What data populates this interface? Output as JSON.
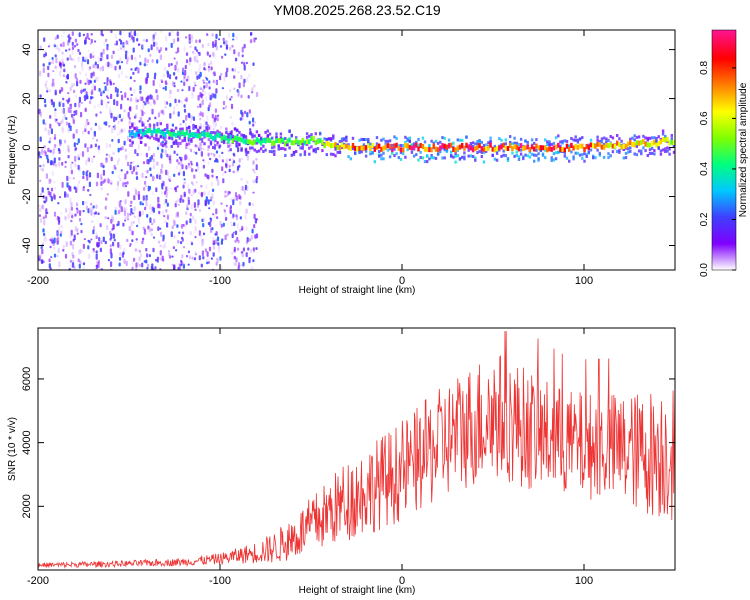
{
  "title": "YM08.2025.268.23.52.C19",
  "colors": {
    "snr_line": "#ee3333",
    "axis": "#000000",
    "colormap": [
      "#ffffff",
      "#7f00ff",
      "#3f3fff",
      "#00c8ff",
      "#00ff7f",
      "#7fff00",
      "#ffff00",
      "#ff7f00",
      "#ff0000",
      "#ff1493"
    ]
  },
  "chart_data": [
    {
      "type": "heatmap",
      "xlabel": "Height of straight line (km)",
      "ylabel": "Frequency (Hz)",
      "xlim": [
        -200,
        150
      ],
      "ylim": [
        -50,
        48
      ],
      "x_ticks": [
        "-200",
        "-100",
        "0",
        "100"
      ],
      "x_tick_values": [
        -200,
        -100,
        0,
        100
      ],
      "y_ticks": [
        "-40",
        "-20",
        "0",
        "20",
        "40"
      ],
      "y_tick_values": [
        -40,
        -20,
        0,
        20,
        40
      ],
      "colorbar": {
        "label": "Normalized spectral amplitude",
        "range": [
          0,
          0.95
        ],
        "ticks": [
          "0.0",
          "0.2",
          "0.4",
          "0.6",
          "0.8"
        ],
        "tick_values": [
          0.0,
          0.2,
          0.4,
          0.6,
          0.8
        ]
      },
      "ridge": {
        "description": "dominant spectral line near 0 Hz",
        "x": [
          -150,
          -130,
          -110,
          -90,
          -70,
          -50,
          -40,
          -30,
          -10,
          0,
          20,
          40,
          60,
          80,
          100,
          120,
          140,
          150
        ],
        "frequency_hz": [
          6,
          6,
          5,
          3,
          2,
          3,
          1,
          0,
          0,
          0,
          0,
          0,
          0,
          0,
          0,
          1,
          2,
          3
        ],
        "amplitude": [
          0.35,
          0.45,
          0.45,
          0.5,
          0.55,
          0.55,
          0.65,
          0.8,
          0.9,
          0.95,
          0.95,
          0.9,
          0.9,
          0.9,
          0.85,
          0.75,
          0.7,
          0.6
        ]
      },
      "noise": {
        "description": "broadband low-amplitude noise, dense for x < -100, sparse up to -80",
        "dense_x_range": [
          -200,
          -100
        ],
        "sparse_x_range": [
          -100,
          -80
        ],
        "amplitude_range": [
          0.02,
          0.25
        ]
      }
    },
    {
      "type": "line",
      "xlabel": "Height of straight line (km)",
      "ylabel": "SNR (10 * v/v)",
      "xlim": [
        -200,
        150
      ],
      "ylim": [
        0,
        7600
      ],
      "x_ticks": [
        "-200",
        "-100",
        "0",
        "100"
      ],
      "x_tick_values": [
        -200,
        -100,
        0,
        100
      ],
      "y_ticks": [
        "2000",
        "4000",
        "6000"
      ],
      "y_tick_values": [
        2000,
        4000,
        6000
      ],
      "series": [
        {
          "name": "SNR",
          "x": [
            -200,
            -150,
            -120,
            -100,
            -90,
            -80,
            -70,
            -60,
            -50,
            -40,
            -30,
            -20,
            -10,
            0,
            10,
            20,
            30,
            40,
            50,
            60,
            70,
            80,
            90,
            100,
            110,
            120,
            130,
            140,
            150
          ],
          "mean": [
            150,
            200,
            250,
            350,
            450,
            550,
            700,
            1000,
            1400,
            1800,
            2200,
            2500,
            2800,
            3100,
            3500,
            3900,
            4300,
            4600,
            4900,
            4700,
            4400,
            4200,
            4000,
            3900,
            3900,
            3800,
            3700,
            3700,
            3800
          ],
          "spread": [
            80,
            100,
            120,
            180,
            250,
            350,
            500,
            700,
            900,
            1100,
            1300,
            1400,
            1500,
            1600,
            1700,
            1800,
            1900,
            2000,
            2100,
            2000,
            1900,
            1800,
            1700,
            1700,
            1700,
            1800,
            1900,
            2100,
            2300
          ],
          "peak": 7500
        }
      ]
    }
  ]
}
